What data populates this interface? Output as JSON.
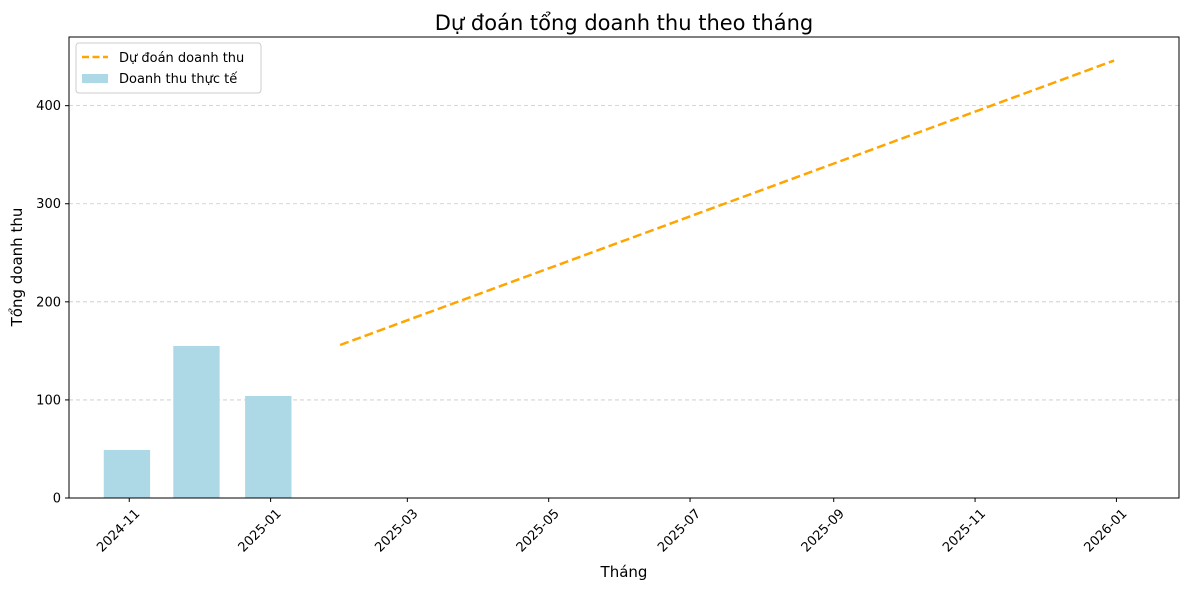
{
  "chart_data": {
    "type": "bar",
    "title": "Dự đoán tổng doanh thu theo tháng",
    "xlabel": "Tháng",
    "ylabel": "Tổng doanh thu",
    "x_axis": {
      "kind": "date",
      "range": [
        "2024-10-06",
        "2026-01-28"
      ],
      "ticks": [
        "2024-11-01",
        "2025-01-01",
        "2025-03-01",
        "2025-05-01",
        "2025-07-01",
        "2025-09-01",
        "2025-11-01",
        "2026-01-01"
      ],
      "tick_labels": [
        "2024-11",
        "2025-01",
        "2025-03",
        "2025-05",
        "2025-07",
        "2025-09",
        "2025-11",
        "2026-01"
      ],
      "tick_label_rotation": 45
    },
    "y_axis": {
      "range": [
        0,
        470
      ],
      "ticks": [
        0,
        100,
        200,
        300,
        400
      ],
      "tick_labels": [
        "0",
        "100",
        "200",
        "300",
        "400"
      ]
    },
    "grid": "y dashed",
    "legend": "top-left",
    "series": [
      {
        "name": "Dự đoán doanh thu",
        "type": "line",
        "style": "dashed",
        "color": "#FFA500",
        "points": [
          {
            "x": "2025-01-31",
            "y": 156
          },
          {
            "x": "2025-12-31",
            "y": 446
          }
        ]
      },
      {
        "name": "Doanh thu thực tế",
        "type": "bar",
        "color": "#ADD8E6",
        "bar_width_days": 20,
        "points": [
          {
            "x": "2024-10-31",
            "y": 49
          },
          {
            "x": "2024-11-30",
            "y": 155
          },
          {
            "x": "2024-12-31",
            "y": 104
          }
        ]
      }
    ]
  }
}
